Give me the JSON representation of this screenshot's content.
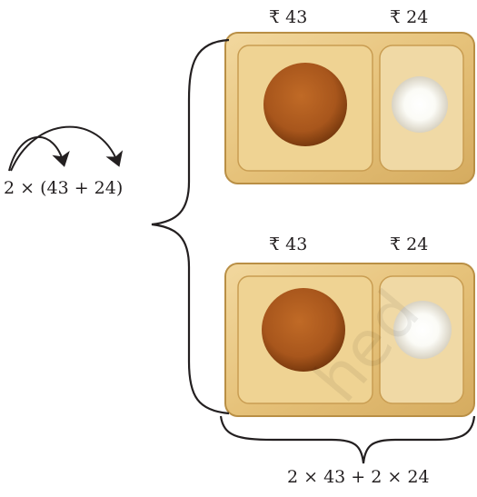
{
  "trays": [
    {
      "price_left": "₹ 43",
      "price_right": "₹ 24"
    },
    {
      "price_left": "₹ 43",
      "price_right": "₹ 24"
    }
  ],
  "expression_left": "2 × (43 + 24)",
  "expression_bottom": "2 × 43 + 2 × 24",
  "watermark": "hed",
  "colors": {
    "tray": "#e6c27a",
    "tray_edge": "#b98f45",
    "tray_inner": "#f1d79d",
    "patty": "#a8561c",
    "patty_dark": "#7a3a0e",
    "scoop": "#ffffff",
    "ink": "#231f20"
  }
}
